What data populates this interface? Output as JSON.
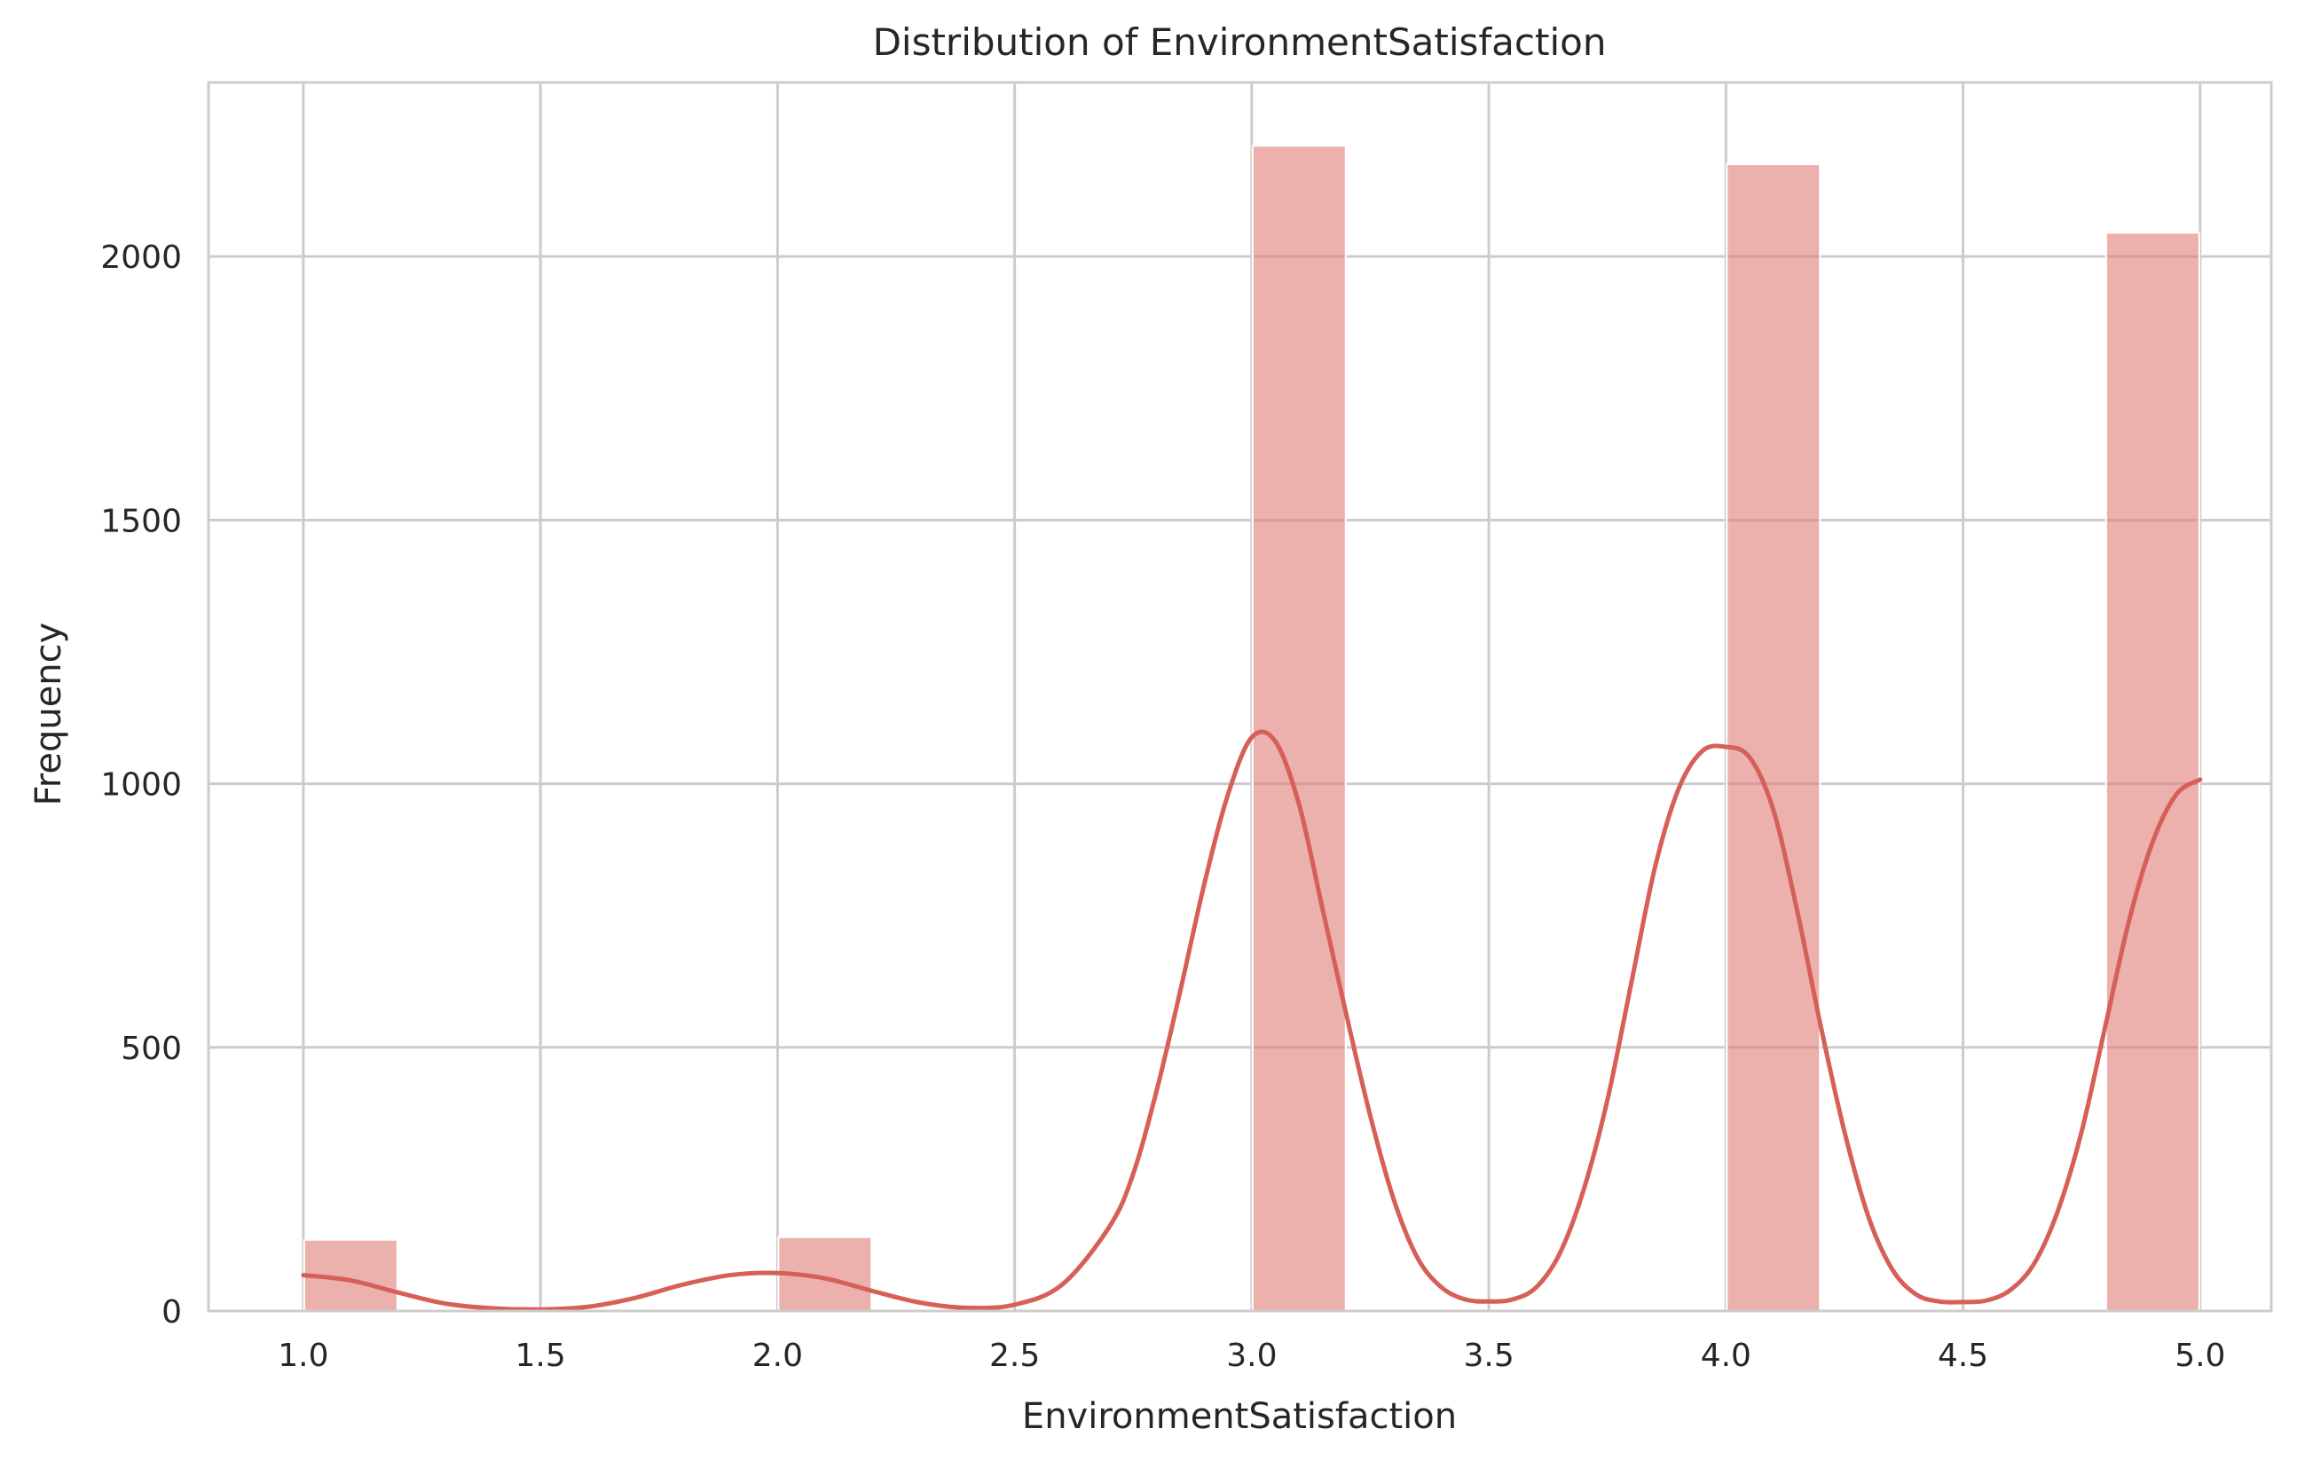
{
  "chart_data": {
    "type": "bar",
    "title": "Distribution of EnvironmentSatisfaction",
    "xlabel": "EnvironmentSatisfaction",
    "ylabel": "Frequency",
    "xlim": [
      0.8,
      5.15
    ],
    "ylim": [
      0,
      2330
    ],
    "xticks": [
      1.0,
      1.5,
      2.0,
      2.5,
      3.0,
      3.5,
      4.0,
      4.5,
      5.0
    ],
    "xtick_labels": [
      "1.0",
      "1.5",
      "2.0",
      "2.5",
      "3.0",
      "3.5",
      "4.0",
      "4.5",
      "5.0"
    ],
    "yticks": [
      0,
      500,
      1000,
      1500,
      2000
    ],
    "ytick_labels": [
      "0",
      "500",
      "1000",
      "1500",
      "2000"
    ],
    "grid": true,
    "bin_edges": [
      1.0,
      1.2,
      1.4,
      1.6,
      1.8,
      2.0,
      2.2,
      2.4,
      2.6,
      2.8,
      3.0,
      3.2,
      3.4,
      3.6,
      3.8,
      4.0,
      4.2,
      4.4,
      4.6,
      4.8,
      5.0
    ],
    "values": [
      135,
      0,
      0,
      0,
      0,
      140,
      0,
      0,
      0,
      0,
      2210,
      0,
      0,
      0,
      0,
      2175,
      0,
      0,
      0,
      2045
    ],
    "kde": {
      "x": [
        1.0,
        1.1,
        1.2,
        1.3,
        1.4,
        1.5,
        1.6,
        1.7,
        1.8,
        1.9,
        2.0,
        2.1,
        2.2,
        2.3,
        2.4,
        2.5,
        2.6,
        2.7,
        2.75,
        2.8,
        2.85,
        2.9,
        2.95,
        3.0,
        3.05,
        3.1,
        3.15,
        3.2,
        3.25,
        3.3,
        3.35,
        3.4,
        3.45,
        3.5,
        3.55,
        3.6,
        3.65,
        3.7,
        3.75,
        3.8,
        3.85,
        3.9,
        3.95,
        4.0,
        4.05,
        4.1,
        4.15,
        4.2,
        4.25,
        4.3,
        4.35,
        4.4,
        4.45,
        4.5,
        4.55,
        4.6,
        4.65,
        4.7,
        4.75,
        4.8,
        4.85,
        4.9,
        4.95,
        5.0
      ],
      "y": [
        68,
        58,
        35,
        14,
        5,
        3,
        8,
        25,
        50,
        68,
        72,
        62,
        38,
        16,
        6,
        12,
        50,
        160,
        260,
        420,
        610,
        810,
        980,
        1088,
        1080,
        960,
        760,
        560,
        370,
        210,
        100,
        45,
        22,
        18,
        22,
        45,
        110,
        230,
        400,
        620,
        840,
        990,
        1062,
        1070,
        1050,
        950,
        760,
        540,
        340,
        180,
        80,
        32,
        18,
        17,
        20,
        40,
        90,
        190,
        340,
        540,
        740,
        890,
        980,
        1008
      ]
    },
    "colors": {
      "bar": "#e07b77",
      "kde": "#d65f57",
      "grid": "#cccccc",
      "axes_edge": "#cccccc",
      "background": "#ffffff"
    }
  }
}
